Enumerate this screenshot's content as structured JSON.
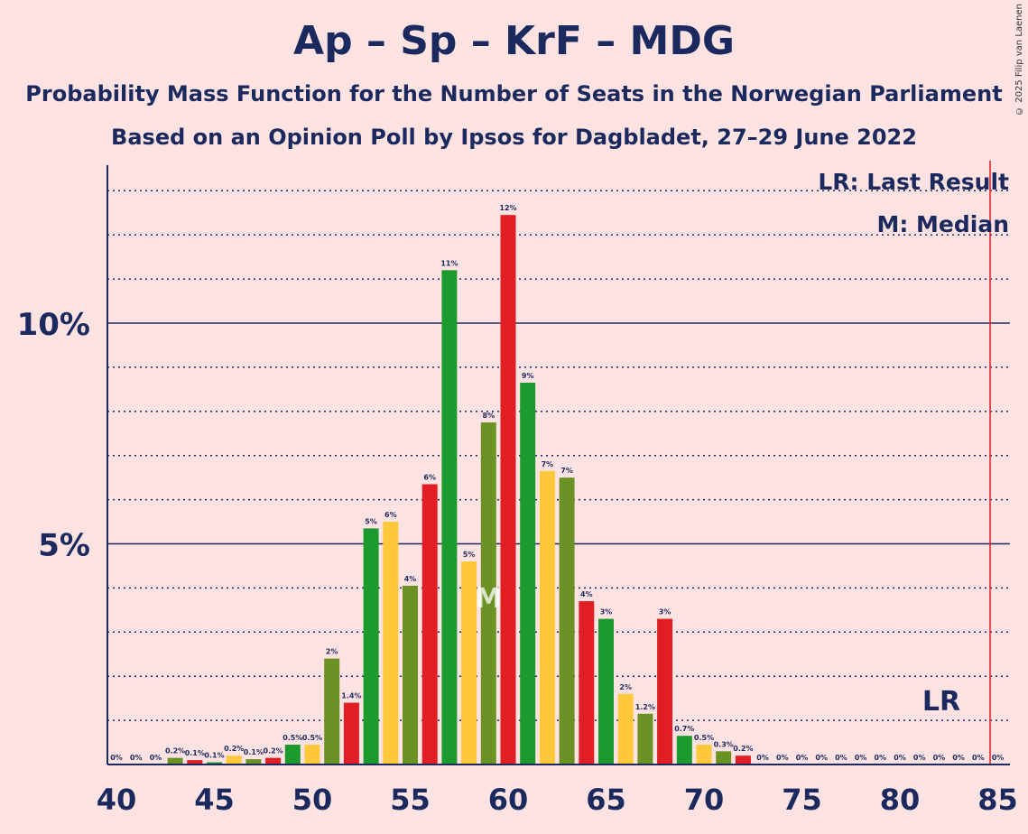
{
  "title": "Ap – Sp – KrF – MDG",
  "subtitle1": "Probability Mass Function for the Number of Seats in the Norwegian Parliament",
  "subtitle2": "Based on an Opinion Poll by Ipsos for Dagbladet, 27–29 June 2022",
  "copyright": "© 2025 Filip van Laenen",
  "colors": {
    "background": "#FFE3E3",
    "text": "#1B2A5E",
    "ap_red": "#E01E24",
    "sp_green": "#1C9A2E",
    "krf_yellow": "#FFC83A",
    "mdg_olive": "#6B9224",
    "last_result_line": "#E01E24"
  },
  "chart_data": {
    "type": "bar",
    "x": [
      40,
      41,
      42,
      43,
      44,
      45,
      46,
      47,
      48,
      49,
      50,
      51,
      52,
      53,
      54,
      55,
      56,
      57,
      58,
      59,
      60,
      61,
      62,
      63,
      64,
      65,
      66,
      67,
      68,
      69,
      70,
      71,
      72,
      73,
      74,
      75,
      76,
      77,
      78,
      79,
      80,
      81,
      82,
      83,
      84,
      85
    ],
    "values": [
      0,
      0,
      0,
      0.15,
      0.1,
      0.05,
      0.2,
      0.12,
      0.15,
      0.45,
      0.45,
      2.4,
      1.4,
      5.35,
      5.5,
      4.05,
      6.35,
      11.2,
      4.6,
      7.75,
      12.45,
      8.65,
      6.65,
      6.5,
      3.7,
      3.3,
      1.6,
      1.15,
      3.3,
      0.65,
      0.45,
      0.3,
      0.2,
      0,
      0,
      0,
      0,
      0,
      0,
      0,
      0,
      0,
      0,
      0,
      0,
      0
    ],
    "value_labels": [
      "0%",
      "0%",
      "0%",
      "0.2%",
      "0.1%",
      "0.1%",
      "0.2%",
      "0.1%",
      "0.2%",
      "0.5%",
      "0.5%",
      "2%",
      "1.4%",
      "5%",
      "6%",
      "4%",
      "6%",
      "11%",
      "5%",
      "8%",
      "12%",
      "9%",
      "7%",
      "7%",
      "4%",
      "3%",
      "2%",
      "1.2%",
      "3%",
      "0.7%",
      "0.5%",
      "0.3%",
      "0.2%",
      "0%",
      "0%",
      "0%",
      "0%",
      "0%",
      "0%",
      "0%",
      "0%",
      "0%",
      "0%",
      "0%",
      "0%",
      "0%"
    ],
    "bar_colors": [
      "green",
      "red",
      "green",
      "olive",
      "red",
      "green",
      "yellow",
      "olive",
      "red",
      "green",
      "yellow",
      "olive",
      "red",
      "green",
      "yellow",
      "olive",
      "red",
      "green",
      "yellow",
      "olive",
      "red",
      "green",
      "yellow",
      "olive",
      "red",
      "green",
      "yellow",
      "olive",
      "red",
      "green",
      "yellow",
      "olive",
      "red",
      "green",
      "yellow",
      "olive",
      "red",
      "green",
      "yellow",
      "olive",
      "red",
      "green",
      "yellow",
      "olive",
      "red",
      "green"
    ],
    "x_ticks": [
      40,
      45,
      50,
      55,
      60,
      65,
      70,
      75,
      80,
      85
    ],
    "y_ticks": [
      {
        "value": 5,
        "label": "5%"
      },
      {
        "value": 10,
        "label": "10%"
      }
    ],
    "xlim": [
      40,
      85
    ],
    "ylim": [
      0,
      13.5
    ],
    "minor_grid_step": 1,
    "median_seat": 59,
    "median_marker": "M",
    "last_result_seat": 85,
    "last_result_marker": "LR",
    "legend": [
      "LR: Last Result",
      "M: Median"
    ],
    "legend_position": "top-right"
  }
}
